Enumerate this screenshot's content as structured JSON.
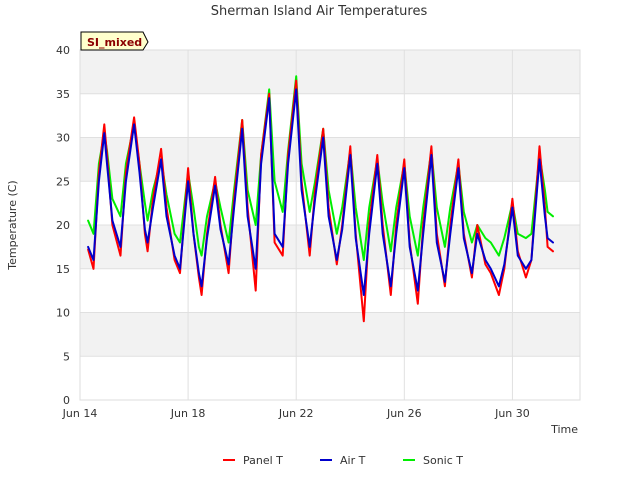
{
  "chart_data": {
    "type": "line",
    "title": "Sherman Island Air Temperatures",
    "xlabel": "Time",
    "ylabel": "Temperature (C)",
    "badge": "SI_mixed",
    "ylim": [
      0,
      40
    ],
    "xlim": [
      0,
      18.5
    ],
    "yticks": [
      0,
      5,
      10,
      15,
      20,
      25,
      30,
      35,
      40
    ],
    "xticks": [
      {
        "x": 0,
        "label": "Jun 14"
      },
      {
        "x": 4,
        "label": "Jun 18"
      },
      {
        "x": 8,
        "label": "Jun 22"
      },
      {
        "x": 12,
        "label": "Jun 26"
      },
      {
        "x": 16,
        "label": "Jun 30"
      }
    ],
    "grid": true,
    "legend_position": "bottom",
    "series": [
      {
        "name": "Panel T",
        "color": "#ff0000",
        "x": [
          0.3,
          0.5,
          0.7,
          0.9,
          1.0,
          1.2,
          1.5,
          1.7,
          2.0,
          2.2,
          2.4,
          2.5,
          2.7,
          3.0,
          3.2,
          3.5,
          3.7,
          4.0,
          4.2,
          4.4,
          4.5,
          4.7,
          5.0,
          5.2,
          5.5,
          5.7,
          6.0,
          6.2,
          6.5,
          6.7,
          7.0,
          7.2,
          7.5,
          7.7,
          8.0,
          8.2,
          8.5,
          8.7,
          9.0,
          9.2,
          9.5,
          9.7,
          10.0,
          10.2,
          10.5,
          10.7,
          11.0,
          11.2,
          11.5,
          11.7,
          12.0,
          12.2,
          12.5,
          12.7,
          13.0,
          13.2,
          13.5,
          13.7,
          14.0,
          14.2,
          14.5,
          14.7,
          15.0,
          15.2,
          15.5,
          15.7,
          16.0,
          16.2,
          16.5,
          16.7,
          17.0,
          17.2,
          17.3,
          17.5
        ],
        "y": [
          17.2,
          15.0,
          26.0,
          31.5,
          28.0,
          20.0,
          16.5,
          26.0,
          32.3,
          27.0,
          19.0,
          17.0,
          23.0,
          28.7,
          22.0,
          16.0,
          14.5,
          26.5,
          19.0,
          14.0,
          12.0,
          19.0,
          25.5,
          20.0,
          14.5,
          23.0,
          32.0,
          22.0,
          12.5,
          28.0,
          35.0,
          18.0,
          16.5,
          28.0,
          36.5,
          25.0,
          16.5,
          24.0,
          31.0,
          22.0,
          15.5,
          20.0,
          29.0,
          19.0,
          9.0,
          20.0,
          28.0,
          20.0,
          12.0,
          20.0,
          27.5,
          18.0,
          11.0,
          20.0,
          29.0,
          19.0,
          13.0,
          20.0,
          27.5,
          19.0,
          14.0,
          20.0,
          15.5,
          14.5,
          12.0,
          15.0,
          23.0,
          17.0,
          14.0,
          16.0,
          29.0,
          22.0,
          17.5,
          17.0
        ]
      },
      {
        "name": "Air T",
        "color": "#0000cc",
        "x": [
          0.3,
          0.5,
          0.7,
          0.9,
          1.0,
          1.2,
          1.5,
          1.7,
          2.0,
          2.2,
          2.4,
          2.5,
          2.7,
          3.0,
          3.2,
          3.5,
          3.7,
          4.0,
          4.2,
          4.4,
          4.5,
          4.7,
          5.0,
          5.2,
          5.5,
          5.7,
          6.0,
          6.2,
          6.5,
          6.7,
          7.0,
          7.2,
          7.5,
          7.7,
          8.0,
          8.2,
          8.5,
          8.7,
          9.0,
          9.2,
          9.5,
          9.7,
          10.0,
          10.2,
          10.5,
          10.7,
          11.0,
          11.2,
          11.5,
          11.7,
          12.0,
          12.2,
          12.5,
          12.7,
          13.0,
          13.2,
          13.5,
          13.7,
          14.0,
          14.2,
          14.5,
          14.7,
          15.0,
          15.2,
          15.5,
          15.7,
          16.0,
          16.2,
          16.5,
          16.7,
          17.0,
          17.2,
          17.3,
          17.5
        ],
        "y": [
          17.5,
          16.0,
          25.0,
          30.5,
          27.0,
          20.5,
          17.5,
          25.0,
          31.5,
          26.0,
          19.5,
          18.0,
          22.0,
          27.5,
          21.0,
          16.5,
          15.0,
          25.0,
          19.0,
          14.5,
          13.0,
          18.5,
          24.5,
          19.5,
          15.5,
          22.0,
          31.0,
          21.0,
          15.0,
          27.0,
          34.5,
          19.0,
          17.5,
          27.0,
          35.5,
          24.0,
          17.5,
          23.0,
          30.0,
          21.0,
          16.0,
          19.5,
          28.0,
          18.5,
          12.0,
          19.0,
          27.0,
          19.0,
          13.0,
          19.0,
          26.5,
          17.5,
          12.5,
          19.0,
          28.0,
          18.0,
          13.5,
          19.0,
          26.5,
          18.5,
          14.5,
          19.0,
          16.0,
          15.0,
          13.0,
          15.5,
          22.0,
          16.5,
          15.0,
          16.0,
          27.5,
          21.0,
          18.5,
          18.0
        ]
      },
      {
        "name": "Sonic T",
        "color": "#00ee00",
        "x": [
          0.3,
          0.5,
          0.7,
          0.9,
          1.0,
          1.2,
          1.5,
          1.7,
          2.0,
          2.2,
          2.4,
          2.5,
          2.7,
          3.0,
          3.2,
          3.5,
          3.7,
          4.0,
          4.2,
          4.4,
          4.5,
          4.7,
          5.0,
          5.2,
          5.5,
          5.7,
          6.0,
          6.2,
          6.5,
          6.7,
          7.0,
          7.2,
          7.5,
          7.7,
          8.0,
          8.2,
          8.5,
          8.7,
          9.0,
          9.2,
          9.5,
          9.7,
          10.0,
          10.2,
          10.5,
          10.7,
          11.0,
          11.2,
          11.5,
          11.7,
          12.0,
          12.2,
          12.5,
          12.7,
          13.0,
          13.2,
          13.5,
          13.7,
          14.0,
          14.2,
          14.5,
          14.7,
          15.0,
          15.2,
          15.5,
          15.7,
          16.0,
          16.2,
          16.5,
          16.7,
          17.0,
          17.2,
          17.3,
          17.5
        ],
        "y": [
          20.5,
          19.0,
          27.0,
          30.5,
          28.5,
          23.0,
          21.0,
          27.0,
          31.5,
          27.0,
          22.5,
          20.5,
          24.0,
          27.5,
          23.5,
          19.0,
          18.0,
          26.0,
          22.0,
          17.5,
          16.5,
          21.0,
          25.0,
          22.0,
          18.0,
          24.0,
          32.0,
          24.0,
          20.0,
          28.0,
          35.5,
          25.0,
          21.5,
          28.5,
          37.0,
          27.0,
          21.5,
          25.0,
          31.0,
          24.0,
          19.0,
          22.0,
          28.5,
          22.0,
          16.0,
          22.0,
          27.5,
          22.5,
          17.0,
          22.0,
          27.0,
          21.0,
          16.5,
          22.0,
          28.5,
          22.0,
          17.5,
          22.0,
          27.0,
          21.5,
          18.0,
          20.0,
          18.5,
          18.0,
          16.5,
          18.5,
          22.5,
          19.0,
          18.5,
          19.0,
          28.0,
          24.0,
          21.5,
          21.0
        ]
      }
    ]
  }
}
